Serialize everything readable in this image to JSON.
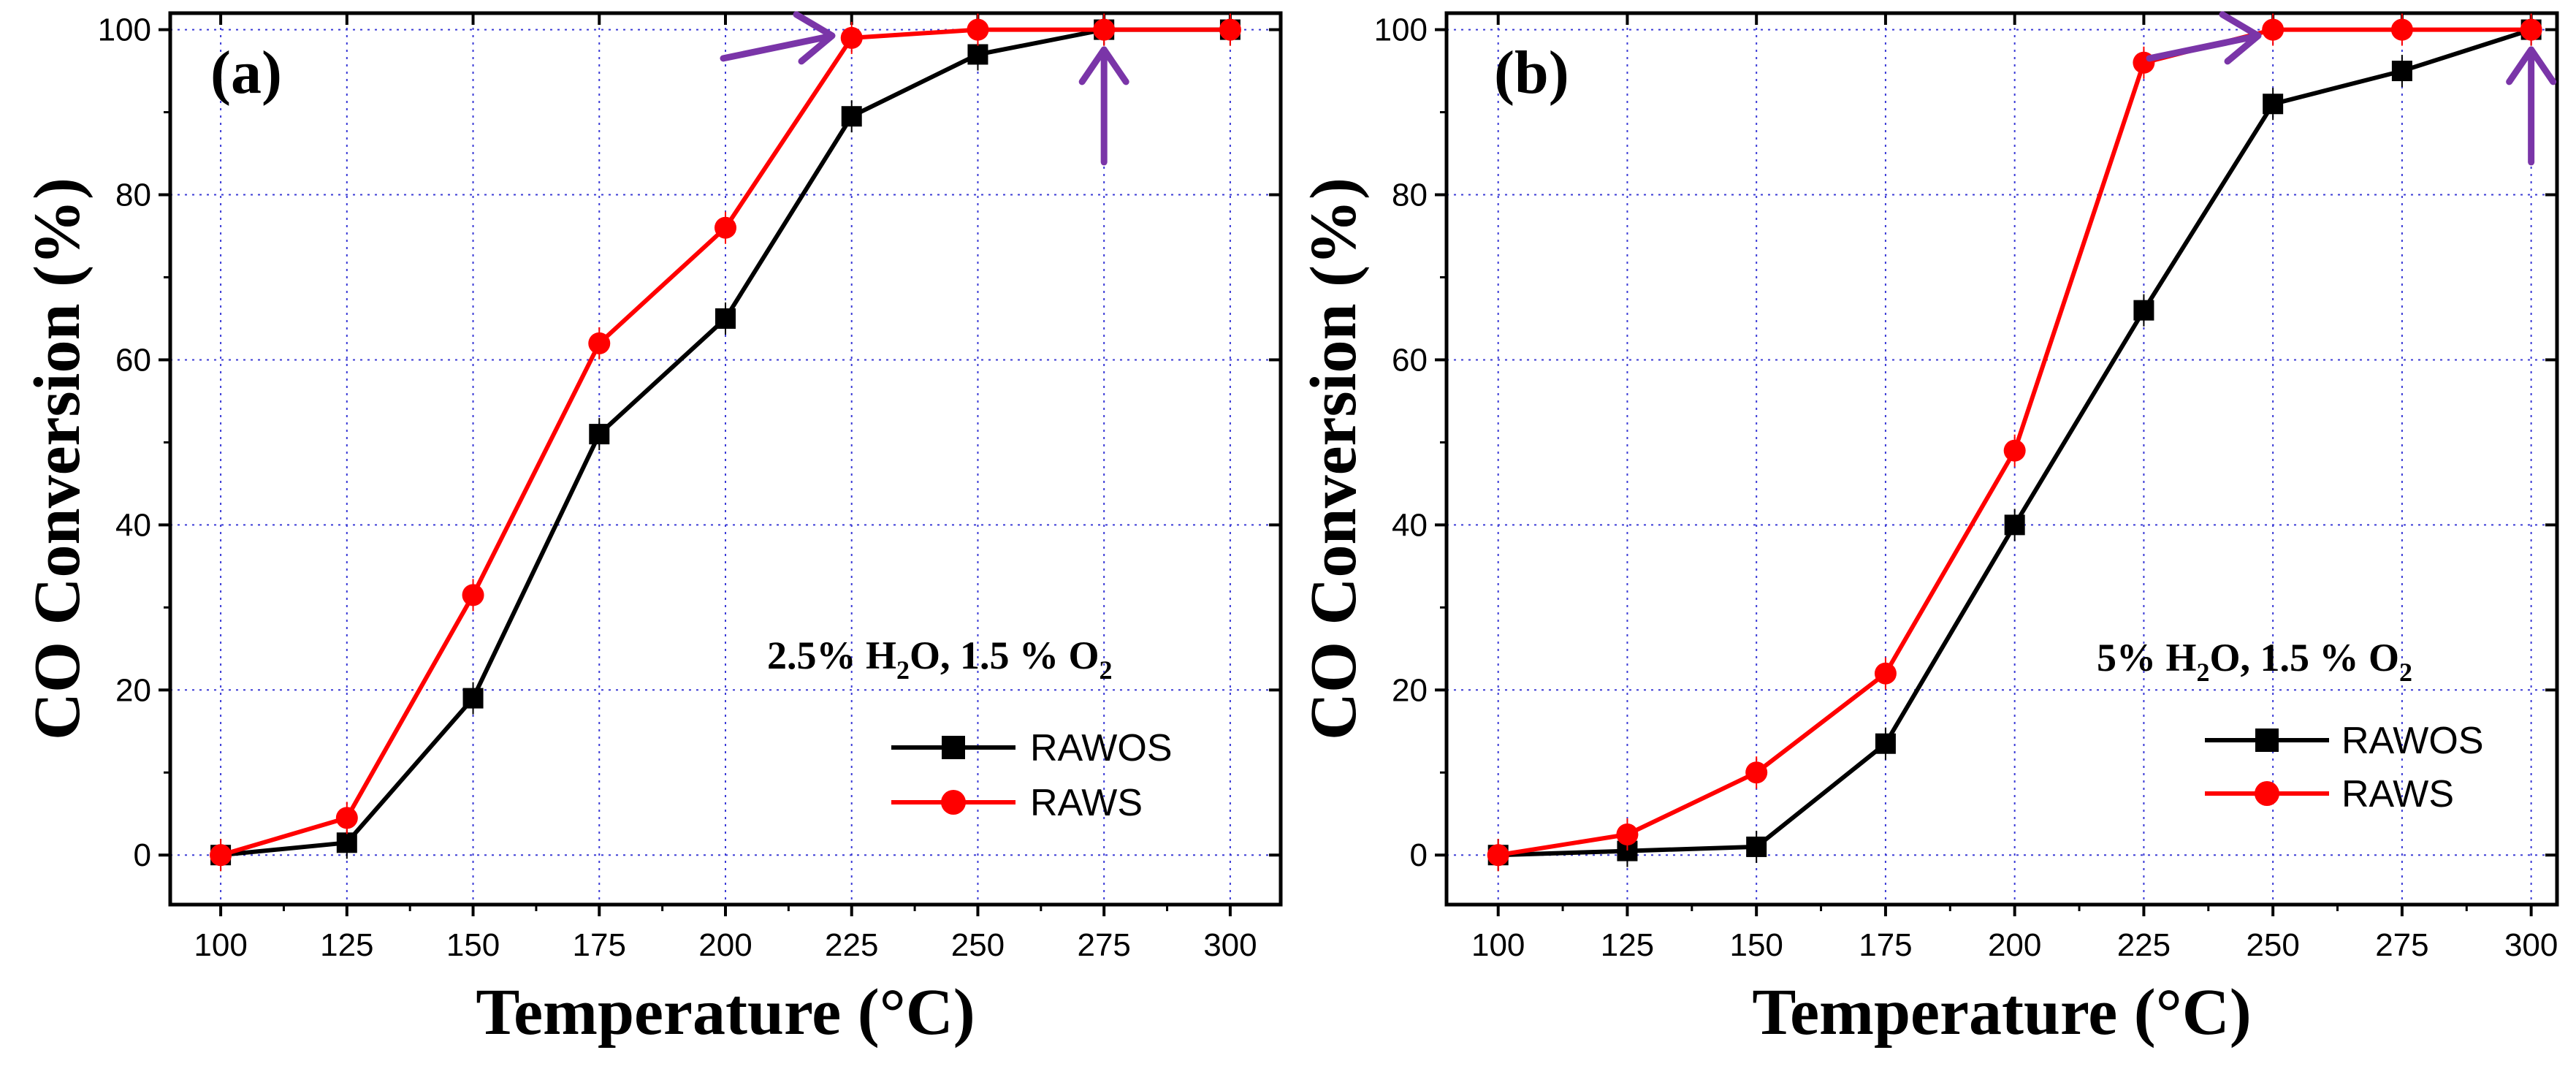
{
  "colors": {
    "RAWOS": "#000000",
    "RAWS": "#ff0000",
    "arrow": "#7a35a8",
    "grid": "#3b3bd6"
  },
  "chart_data": [
    {
      "type": "line",
      "panel_label": "(a)",
      "condition": {
        "prefix": "2.5% H",
        "sub1": "2",
        "middle": "O, 1.5 % O",
        "sub2": "2"
      },
      "xlabel": "Temperature (°C)",
      "ylabel": "CO Conversion (%)",
      "xlim": [
        90,
        310
      ],
      "ylim": [
        -6,
        102
      ],
      "xticks": [
        100,
        125,
        150,
        175,
        200,
        225,
        250,
        275,
        300
      ],
      "yticks": [
        0,
        20,
        40,
        60,
        80,
        100
      ],
      "grid": true,
      "legend_position": "center-right",
      "x": [
        100,
        125,
        150,
        175,
        200,
        225,
        250,
        275,
        300
      ],
      "series": [
        {
          "name": "RAWOS",
          "marker": "square",
          "values": [
            0,
            1.5,
            19,
            51,
            65,
            89.5,
            97,
            100,
            100
          ]
        },
        {
          "name": "RAWS",
          "marker": "circle",
          "values": [
            0,
            4.5,
            31.5,
            62,
            76,
            99,
            100,
            100,
            100
          ]
        }
      ],
      "annotations": [
        {
          "type": "arrow",
          "target_x": 222,
          "target_y": 99,
          "direction": "right"
        },
        {
          "type": "arrow",
          "target_x": 275,
          "target_y": 99,
          "direction": "up"
        }
      ]
    },
    {
      "type": "line",
      "panel_label": "(b)",
      "condition": {
        "prefix": "5% H",
        "sub1": "2",
        "middle": "O, 1.5 % O",
        "sub2": "2"
      },
      "xlabel": "Temperature (°C)",
      "ylabel": "CO Conversion (%)",
      "xlim": [
        90,
        305
      ],
      "ylim": [
        -6,
        102
      ],
      "xticks": [
        100,
        125,
        150,
        175,
        200,
        225,
        250,
        275,
        300
      ],
      "yticks": [
        0,
        20,
        40,
        60,
        80,
        100
      ],
      "grid": true,
      "legend_position": "center-right",
      "x": [
        100,
        125,
        150,
        175,
        200,
        225,
        250,
        275,
        300
      ],
      "series": [
        {
          "name": "RAWOS",
          "marker": "square",
          "values": [
            0,
            0.5,
            1,
            13.5,
            40,
            66,
            91,
            95,
            100
          ]
        },
        {
          "name": "RAWS",
          "marker": "circle",
          "values": [
            0,
            2.5,
            10,
            22,
            49,
            96,
            100,
            100,
            100
          ]
        }
      ],
      "annotations": [
        {
          "type": "arrow",
          "target_x": 248,
          "target_y": 99,
          "direction": "right"
        },
        {
          "type": "arrow",
          "target_x": 300,
          "target_y": 99,
          "direction": "up"
        }
      ]
    }
  ]
}
